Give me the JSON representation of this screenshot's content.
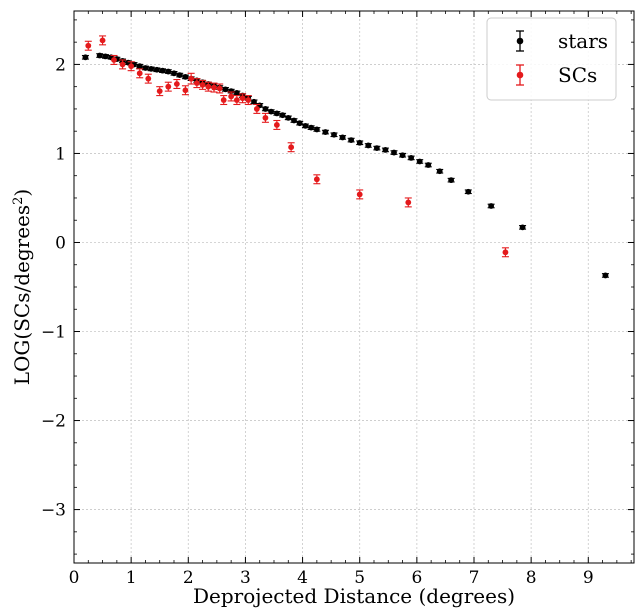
{
  "chart_data": {
    "type": "scatter",
    "title": "",
    "xlabel": "Deprojected Distance (degrees)",
    "ylabel_main": "LOG(SCs/degrees",
    "ylabel_sup": "2",
    "ylabel_close": ")",
    "xlim": [
      0,
      9.8
    ],
    "ylim": [
      -3.6,
      2.6
    ],
    "xticks": [
      0,
      1,
      2,
      3,
      4,
      5,
      6,
      7,
      8,
      9
    ],
    "yticks": [
      -3,
      -2,
      -1,
      0,
      1,
      2
    ],
    "xtick_labels": [
      "0",
      "1",
      "2",
      "3",
      "4",
      "5",
      "6",
      "7",
      "8",
      "9"
    ],
    "ytick_labels": [
      "−3",
      "−2",
      "−1",
      "0",
      "1",
      "2"
    ],
    "grid": true,
    "legend_position": "top-right",
    "series": [
      {
        "name": "stars",
        "color": "#000000",
        "points": [
          [
            0.2,
            2.08,
            0.02
          ],
          [
            0.45,
            2.1,
            0.02
          ],
          [
            0.55,
            2.09,
            0.02
          ],
          [
            0.65,
            2.08,
            0.02
          ],
          [
            0.75,
            2.06,
            0.02
          ],
          [
            0.85,
            2.04,
            0.02
          ],
          [
            0.95,
            2.02,
            0.02
          ],
          [
            1.05,
            2.0,
            0.02
          ],
          [
            1.15,
            1.98,
            0.02
          ],
          [
            1.25,
            1.96,
            0.02
          ],
          [
            1.35,
            1.95,
            0.02
          ],
          [
            1.45,
            1.94,
            0.02
          ],
          [
            1.55,
            1.93,
            0.02
          ],
          [
            1.65,
            1.92,
            0.02
          ],
          [
            1.75,
            1.9,
            0.02
          ],
          [
            1.85,
            1.88,
            0.02
          ],
          [
            1.95,
            1.86,
            0.02
          ],
          [
            2.05,
            1.84,
            0.02
          ],
          [
            2.15,
            1.82,
            0.02
          ],
          [
            2.25,
            1.8,
            0.02
          ],
          [
            2.35,
            1.78,
            0.02
          ],
          [
            2.45,
            1.76,
            0.02
          ],
          [
            2.55,
            1.74,
            0.02
          ],
          [
            2.65,
            1.72,
            0.02
          ],
          [
            2.75,
            1.7,
            0.02
          ],
          [
            2.85,
            1.68,
            0.02
          ],
          [
            2.95,
            1.65,
            0.02
          ],
          [
            3.05,
            1.62,
            0.02
          ],
          [
            3.15,
            1.58,
            0.02
          ],
          [
            3.25,
            1.54,
            0.02
          ],
          [
            3.35,
            1.5,
            0.02
          ],
          [
            3.45,
            1.47,
            0.02
          ],
          [
            3.55,
            1.45,
            0.02
          ],
          [
            3.65,
            1.43,
            0.02
          ],
          [
            3.75,
            1.4,
            0.02
          ],
          [
            3.85,
            1.37,
            0.02
          ],
          [
            3.95,
            1.34,
            0.02
          ],
          [
            4.05,
            1.31,
            0.02
          ],
          [
            4.15,
            1.29,
            0.02
          ],
          [
            4.25,
            1.27,
            0.02
          ],
          [
            4.4,
            1.24,
            0.02
          ],
          [
            4.55,
            1.21,
            0.02
          ],
          [
            4.7,
            1.18,
            0.02
          ],
          [
            4.85,
            1.15,
            0.02
          ],
          [
            5.0,
            1.12,
            0.02
          ],
          [
            5.15,
            1.09,
            0.02
          ],
          [
            5.3,
            1.06,
            0.02
          ],
          [
            5.45,
            1.04,
            0.02
          ],
          [
            5.6,
            1.01,
            0.02
          ],
          [
            5.75,
            0.98,
            0.02
          ],
          [
            5.9,
            0.95,
            0.02
          ],
          [
            6.05,
            0.91,
            0.02
          ],
          [
            6.2,
            0.87,
            0.02
          ],
          [
            6.4,
            0.8,
            0.02
          ],
          [
            6.6,
            0.7,
            0.02
          ],
          [
            6.9,
            0.57,
            0.02
          ],
          [
            7.3,
            0.41,
            0.02
          ],
          [
            7.85,
            0.17,
            0.02
          ],
          [
            9.3,
            -0.37,
            0.02
          ]
        ]
      },
      {
        "name": "SCs",
        "color": "#e41a1c",
        "points": [
          [
            0.25,
            2.21,
            0.05
          ],
          [
            0.5,
            2.27,
            0.05
          ],
          [
            0.7,
            2.05,
            0.05
          ],
          [
            0.85,
            2.0,
            0.05
          ],
          [
            1.0,
            1.98,
            0.05
          ],
          [
            1.15,
            1.9,
            0.05
          ],
          [
            1.3,
            1.84,
            0.05
          ],
          [
            1.5,
            1.7,
            0.05
          ],
          [
            1.65,
            1.75,
            0.05
          ],
          [
            1.8,
            1.78,
            0.05
          ],
          [
            1.95,
            1.71,
            0.05
          ],
          [
            2.05,
            1.84,
            0.06
          ],
          [
            2.15,
            1.79,
            0.05
          ],
          [
            2.25,
            1.77,
            0.05
          ],
          [
            2.35,
            1.75,
            0.05
          ],
          [
            2.45,
            1.74,
            0.05
          ],
          [
            2.55,
            1.73,
            0.05
          ],
          [
            2.62,
            1.6,
            0.05
          ],
          [
            2.75,
            1.64,
            0.05
          ],
          [
            2.85,
            1.6,
            0.05
          ],
          [
            2.95,
            1.62,
            0.05
          ],
          [
            3.05,
            1.6,
            0.05
          ],
          [
            3.2,
            1.5,
            0.05
          ],
          [
            3.35,
            1.4,
            0.05
          ],
          [
            3.55,
            1.32,
            0.05
          ],
          [
            3.8,
            1.07,
            0.05
          ],
          [
            4.25,
            0.71,
            0.05
          ],
          [
            5.0,
            0.54,
            0.05
          ],
          [
            5.85,
            0.45,
            0.05
          ],
          [
            7.55,
            -0.11,
            0.05
          ]
        ]
      }
    ]
  }
}
